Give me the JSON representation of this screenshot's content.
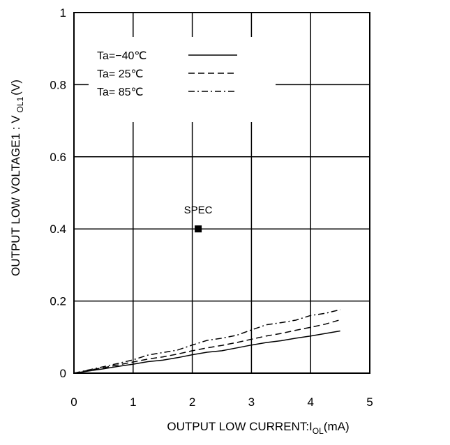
{
  "chart_data": {
    "type": "line",
    "xlabel_main": "OUTPUT LOW CURRENT:I",
    "xlabel_sub": "OL",
    "xlabel_unit": "(mA)",
    "ylabel_main": "OUTPUT LOW VOLTAGE1 : V",
    "ylabel_sub": "OL1",
    "ylabel_unit": "(V)",
    "xlim": [
      0,
      5
    ],
    "ylim": [
      0,
      1
    ],
    "x_ticks": [
      0,
      1,
      2,
      3,
      4,
      5
    ],
    "x_tick_labels": [
      "0",
      "1",
      "2",
      "3",
      "4",
      "5"
    ],
    "y_ticks": [
      0,
      0.2,
      0.4,
      0.6,
      0.8,
      1
    ],
    "y_tick_labels": [
      "0",
      "0.2",
      "0.4",
      "0.6",
      "0.8",
      "1"
    ],
    "grid": true,
    "legend_position": "top-left",
    "series": [
      {
        "name": "Ta=−40℃",
        "dash": "solid",
        "x": [
          0,
          0.25,
          0.5,
          0.75,
          1.0,
          1.25,
          1.5,
          1.75,
          2.0,
          2.25,
          2.5,
          2.75,
          3.0,
          3.25,
          3.5,
          3.75,
          4.0,
          4.25,
          4.5
        ],
        "y": [
          0,
          0.006,
          0.012,
          0.019,
          0.025,
          0.032,
          0.036,
          0.043,
          0.051,
          0.058,
          0.062,
          0.07,
          0.078,
          0.085,
          0.09,
          0.097,
          0.103,
          0.11,
          0.117
        ]
      },
      {
        "name": "Ta= 25℃",
        "dash": "dashed",
        "x": [
          0,
          0.25,
          0.5,
          0.75,
          1.0,
          1.25,
          1.5,
          1.75,
          2.0,
          2.25,
          2.5,
          2.75,
          3.0,
          3.25,
          3.5,
          3.75,
          4.0,
          4.25,
          4.5
        ],
        "y": [
          0,
          0.008,
          0.015,
          0.023,
          0.031,
          0.039,
          0.045,
          0.053,
          0.062,
          0.07,
          0.077,
          0.085,
          0.094,
          0.103,
          0.11,
          0.119,
          0.127,
          0.136,
          0.148
        ]
      },
      {
        "name": "Ta= 85℃",
        "dash": "dashdot",
        "x": [
          0,
          0.25,
          0.5,
          0.75,
          1.0,
          1.25,
          1.5,
          1.75,
          2.0,
          2.25,
          2.5,
          2.75,
          3.0,
          3.25,
          3.5,
          3.75,
          4.0,
          4.25,
          4.5
        ],
        "y": [
          0,
          0.009,
          0.018,
          0.027,
          0.037,
          0.05,
          0.057,
          0.064,
          0.078,
          0.091,
          0.097,
          0.105,
          0.12,
          0.134,
          0.14,
          0.147,
          0.16,
          0.166,
          0.176
        ]
      }
    ],
    "annotation": {
      "text": "SPEC",
      "x": 2.1,
      "y": 0.4
    }
  }
}
